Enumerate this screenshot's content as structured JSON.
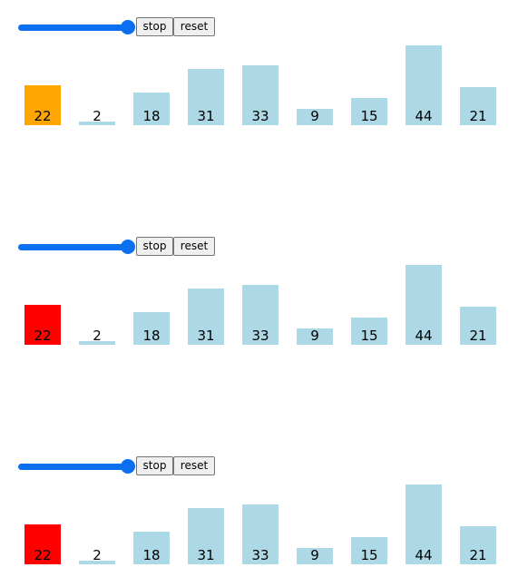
{
  "colors": {
    "bar_default": "#add8e6",
    "highlight_panel1": "#ffa500",
    "highlight_panel2": "#ff0000",
    "highlight_panel3": "#ff0000",
    "slider": "#0b6ff0"
  },
  "panels": [
    {
      "stop_label": "stop",
      "reset_label": "reset",
      "slider_value": 1.0,
      "highlight_index": 0
    },
    {
      "stop_label": "stop",
      "reset_label": "reset",
      "slider_value": 1.0,
      "highlight_index": 0
    },
    {
      "stop_label": "stop",
      "reset_label": "reset",
      "slider_value": 1.0,
      "highlight_index": 0
    }
  ],
  "chart_data": [
    {
      "type": "bar",
      "categories": [
        "22",
        "2",
        "18",
        "31",
        "33",
        "9",
        "15",
        "44",
        "21"
      ],
      "values": [
        22,
        2,
        18,
        31,
        33,
        9,
        15,
        44,
        21
      ]
    },
    {
      "type": "bar",
      "categories": [
        "22",
        "2",
        "18",
        "31",
        "33",
        "9",
        "15",
        "44",
        "21"
      ],
      "values": [
        22,
        2,
        18,
        31,
        33,
        9,
        15,
        44,
        21
      ]
    },
    {
      "type": "bar",
      "categories": [
        "22",
        "2",
        "18",
        "31",
        "33",
        "9",
        "15",
        "44",
        "21"
      ],
      "values": [
        22,
        2,
        18,
        31,
        33,
        9,
        15,
        44,
        21
      ]
    }
  ]
}
